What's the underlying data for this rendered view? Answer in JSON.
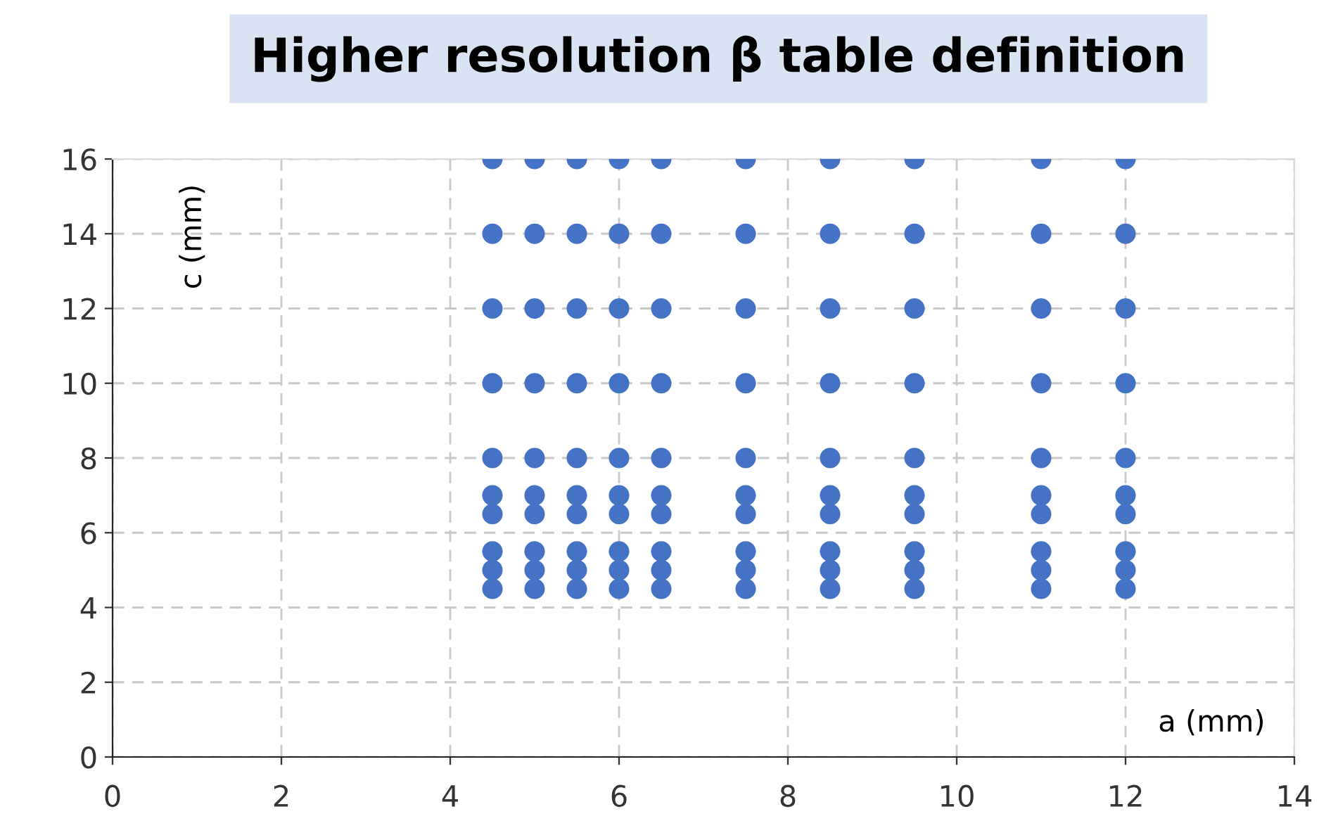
{
  "chart_data": {
    "type": "scatter",
    "title": "Higher resolution β table definition",
    "xlabel": "a (mm)",
    "ylabel": "c (mm)",
    "x": [
      4.5,
      4.5,
      4.5,
      4.5,
      4.5,
      4.5,
      4.5,
      4.5,
      4.5,
      4.5,
      5,
      5,
      5,
      5,
      5,
      5,
      5,
      5,
      5,
      5,
      5.5,
      5.5,
      5.5,
      5.5,
      5.5,
      5.5,
      5.5,
      5.5,
      5.5,
      5.5,
      6,
      6,
      6,
      6,
      6,
      6,
      6,
      6,
      6,
      6,
      6.5,
      6.5,
      6.5,
      6.5,
      6.5,
      6.5,
      6.5,
      6.5,
      6.5,
      6.5,
      7.5,
      7.5,
      7.5,
      7.5,
      7.5,
      7.5,
      7.5,
      7.5,
      7.5,
      7.5,
      8.5,
      8.5,
      8.5,
      8.5,
      8.5,
      8.5,
      8.5,
      8.5,
      8.5,
      8.5,
      9.5,
      9.5,
      9.5,
      9.5,
      9.5,
      9.5,
      9.5,
      9.5,
      9.5,
      9.5,
      11,
      11,
      11,
      11,
      11,
      11,
      11,
      11,
      11,
      11,
      12,
      12,
      12,
      12,
      12,
      12,
      12,
      12,
      12,
      12
    ],
    "values": [
      4.5,
      5,
      5.5,
      6.5,
      7,
      8,
      10,
      12,
      14,
      16,
      4.5,
      5,
      5.5,
      6.5,
      7,
      8,
      10,
      12,
      14,
      16,
      4.5,
      5,
      5.5,
      6.5,
      7,
      8,
      10,
      12,
      14,
      16,
      4.5,
      5,
      5.5,
      6.5,
      7,
      8,
      10,
      12,
      14,
      16,
      4.5,
      5,
      5.5,
      6.5,
      7,
      8,
      10,
      12,
      14,
      16,
      4.5,
      5,
      5.5,
      6.5,
      7,
      8,
      10,
      12,
      14,
      16,
      4.5,
      5,
      5.5,
      6.5,
      7,
      8,
      10,
      12,
      14,
      16,
      4.5,
      5,
      5.5,
      6.5,
      7,
      8,
      10,
      12,
      14,
      16,
      4.5,
      5,
      5.5,
      6.5,
      7,
      8,
      10,
      12,
      14,
      16,
      4.5,
      5,
      5.5,
      6.5,
      7,
      8,
      10,
      12,
      14,
      16
    ],
    "color": "#4472c4",
    "marker": "circle",
    "xlim": [
      0,
      14
    ],
    "xticks": [
      0,
      2,
      4,
      6,
      8,
      10,
      12,
      14
    ],
    "ylim": [
      0,
      16
    ],
    "yticks": [
      0,
      2,
      4,
      6,
      8,
      10,
      12,
      14,
      16
    ],
    "grid": true,
    "legend": false
  }
}
